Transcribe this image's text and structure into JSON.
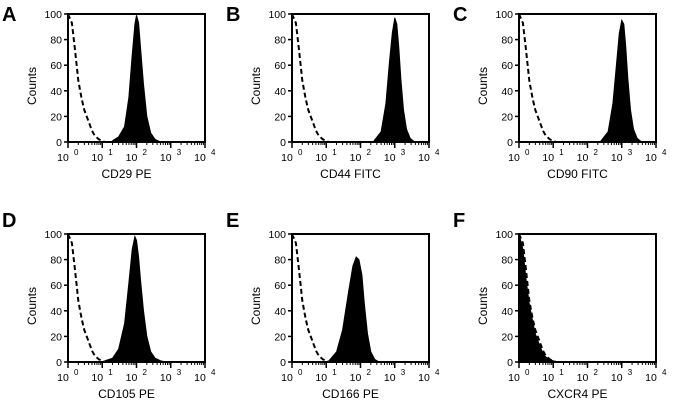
{
  "chart_data": [
    {
      "type": "area",
      "panel": "A",
      "xlabel": "CD29 PE",
      "ylabel": "Counts",
      "x_scale": "log",
      "xlim": [
        1,
        10000
      ],
      "ylim": [
        0,
        100
      ],
      "x_ticks": [
        {
          "base": "10",
          "exp": "0"
        },
        {
          "base": "10",
          "exp": "1"
        },
        {
          "base": "10",
          "exp": "2"
        },
        {
          "base": "10",
          "exp": "3"
        },
        {
          "base": "10",
          "exp": "4"
        }
      ],
      "y_ticks": [
        "0",
        "20",
        "40",
        "60",
        "80",
        "100"
      ],
      "series": [
        {
          "style": "solid-fill",
          "x": [
            20,
            30,
            45,
            60,
            75,
            90,
            100,
            115,
            130,
            160,
            200,
            260,
            350,
            500
          ],
          "y": [
            1,
            4,
            12,
            35,
            68,
            92,
            99,
            93,
            75,
            45,
            20,
            7,
            2,
            0
          ]
        },
        {
          "style": "dashed",
          "x": [
            1,
            1.3,
            1.6,
            2,
            2.5,
            3,
            4,
            5,
            6,
            8,
            12
          ],
          "y": [
            100,
            93,
            72,
            48,
            34,
            25,
            16,
            9,
            5,
            2,
            0
          ]
        }
      ]
    },
    {
      "type": "area",
      "panel": "B",
      "xlabel": "CD44 FITC",
      "ylabel": "Counts",
      "x_scale": "log",
      "xlim": [
        1,
        10000
      ],
      "ylim": [
        0,
        100
      ],
      "x_ticks": [
        {
          "base": "10",
          "exp": "0"
        },
        {
          "base": "10",
          "exp": "1"
        },
        {
          "base": "10",
          "exp": "2"
        },
        {
          "base": "10",
          "exp": "3"
        },
        {
          "base": "10",
          "exp": "4"
        }
      ],
      "y_ticks": [
        "0",
        "20",
        "40",
        "60",
        "80",
        "100"
      ],
      "series": [
        {
          "style": "solid-fill",
          "x": [
            250,
            400,
            550,
            700,
            850,
            1000,
            1150,
            1300,
            1500,
            1800,
            2200,
            2800,
            3800
          ],
          "y": [
            1,
            8,
            30,
            62,
            85,
            97,
            92,
            75,
            50,
            25,
            10,
            3,
            0
          ]
        },
        {
          "style": "dashed",
          "x": [
            1,
            1.3,
            1.6,
            2,
            2.5,
            3,
            4,
            5,
            6,
            8,
            12
          ],
          "y": [
            100,
            93,
            72,
            48,
            34,
            25,
            16,
            9,
            5,
            2,
            0
          ]
        }
      ]
    },
    {
      "type": "area",
      "panel": "C",
      "xlabel": "CD90 FITC",
      "ylabel": "Counts",
      "x_scale": "log",
      "xlim": [
        1,
        10000
      ],
      "ylim": [
        0,
        100
      ],
      "x_ticks": [
        {
          "base": "10",
          "exp": "0"
        },
        {
          "base": "10",
          "exp": "1"
        },
        {
          "base": "10",
          "exp": "2"
        },
        {
          "base": "10",
          "exp": "3"
        },
        {
          "base": "10",
          "exp": "4"
        }
      ],
      "y_ticks": [
        "0",
        "20",
        "40",
        "60",
        "80",
        "100"
      ],
      "series": [
        {
          "style": "solid-fill",
          "x": [
            250,
            400,
            550,
            700,
            850,
            1000,
            1150,
            1300,
            1500,
            1800,
            2200,
            2800,
            3800
          ],
          "y": [
            1,
            8,
            30,
            60,
            85,
            95,
            92,
            75,
            50,
            25,
            10,
            3,
            0
          ]
        },
        {
          "style": "dashed",
          "x": [
            1,
            1.3,
            1.6,
            2,
            2.5,
            3,
            4,
            5,
            6,
            8,
            12
          ],
          "y": [
            100,
            93,
            72,
            48,
            34,
            25,
            16,
            9,
            5,
            2,
            0
          ]
        }
      ]
    },
    {
      "type": "area",
      "panel": "D",
      "xlabel": "CD105 PE",
      "ylabel": "Counts",
      "x_scale": "log",
      "xlim": [
        1,
        10000
      ],
      "ylim": [
        0,
        100
      ],
      "x_ticks": [
        {
          "base": "10",
          "exp": "0"
        },
        {
          "base": "10",
          "exp": "1"
        },
        {
          "base": "10",
          "exp": "2"
        },
        {
          "base": "10",
          "exp": "3"
        },
        {
          "base": "10",
          "exp": "4"
        }
      ],
      "y_ticks": [
        "0",
        "20",
        "40",
        "60",
        "80",
        "100"
      ],
      "series": [
        {
          "style": "solid-fill",
          "x": [
            12,
            20,
            30,
            45,
            60,
            75,
            90,
            100,
            115,
            130,
            160,
            200,
            260,
            350,
            500,
            700
          ],
          "y": [
            1,
            3,
            10,
            30,
            62,
            88,
            98,
            95,
            82,
            65,
            40,
            20,
            8,
            3,
            1,
            0
          ]
        },
        {
          "style": "dashed",
          "x": [
            1,
            1.3,
            1.6,
            2,
            2.5,
            3,
            4,
            5,
            6,
            8,
            12
          ],
          "y": [
            100,
            93,
            72,
            48,
            34,
            25,
            16,
            9,
            5,
            2,
            0
          ]
        }
      ]
    },
    {
      "type": "area",
      "panel": "E",
      "xlabel": "CD166 PE",
      "ylabel": "Counts",
      "x_scale": "log",
      "xlim": [
        1,
        10000
      ],
      "ylim": [
        0,
        100
      ],
      "x_ticks": [
        {
          "base": "10",
          "exp": "0"
        },
        {
          "base": "10",
          "exp": "1"
        },
        {
          "base": "10",
          "exp": "2"
        },
        {
          "base": "10",
          "exp": "3"
        },
        {
          "base": "10",
          "exp": "4"
        }
      ],
      "y_ticks": [
        "0",
        "20",
        "40",
        "60",
        "80",
        "100"
      ],
      "series": [
        {
          "style": "solid-fill",
          "x": [
            12,
            20,
            30,
            45,
            60,
            75,
            90,
            110,
            130,
            160,
            200,
            260,
            350
          ],
          "y": [
            1,
            8,
            25,
            55,
            75,
            82,
            80,
            68,
            45,
            22,
            8,
            2,
            0
          ]
        },
        {
          "style": "dashed",
          "x": [
            1,
            1.3,
            1.6,
            2,
            2.5,
            3,
            4,
            5,
            6,
            8,
            12
          ],
          "y": [
            100,
            93,
            72,
            48,
            34,
            25,
            16,
            9,
            5,
            2,
            0
          ]
        }
      ]
    },
    {
      "type": "area",
      "panel": "F",
      "xlabel": "CXCR4 PE",
      "ylabel": "Counts",
      "x_scale": "log",
      "xlim": [
        1,
        10000
      ],
      "ylim": [
        0,
        100
      ],
      "x_ticks": [
        {
          "base": "10",
          "exp": "0"
        },
        {
          "base": "10",
          "exp": "1"
        },
        {
          "base": "10",
          "exp": "2"
        },
        {
          "base": "10",
          "exp": "3"
        },
        {
          "base": "10",
          "exp": "4"
        }
      ],
      "y_ticks": [
        "0",
        "20",
        "40",
        "60",
        "80",
        "100"
      ],
      "series": [
        {
          "style": "solid-fill",
          "x": [
            1,
            1.3,
            1.6,
            2,
            2.5,
            3,
            4,
            5,
            6,
            8,
            12
          ],
          "y": [
            100,
            88,
            65,
            45,
            32,
            22,
            13,
            7,
            4,
            2,
            0
          ]
        },
        {
          "style": "dashed",
          "x": [
            1,
            1.3,
            1.6,
            2,
            2.5,
            3,
            4,
            5,
            6,
            8,
            12
          ],
          "y": [
            100,
            93,
            72,
            48,
            34,
            25,
            16,
            9,
            5,
            2,
            0
          ]
        }
      ]
    }
  ]
}
